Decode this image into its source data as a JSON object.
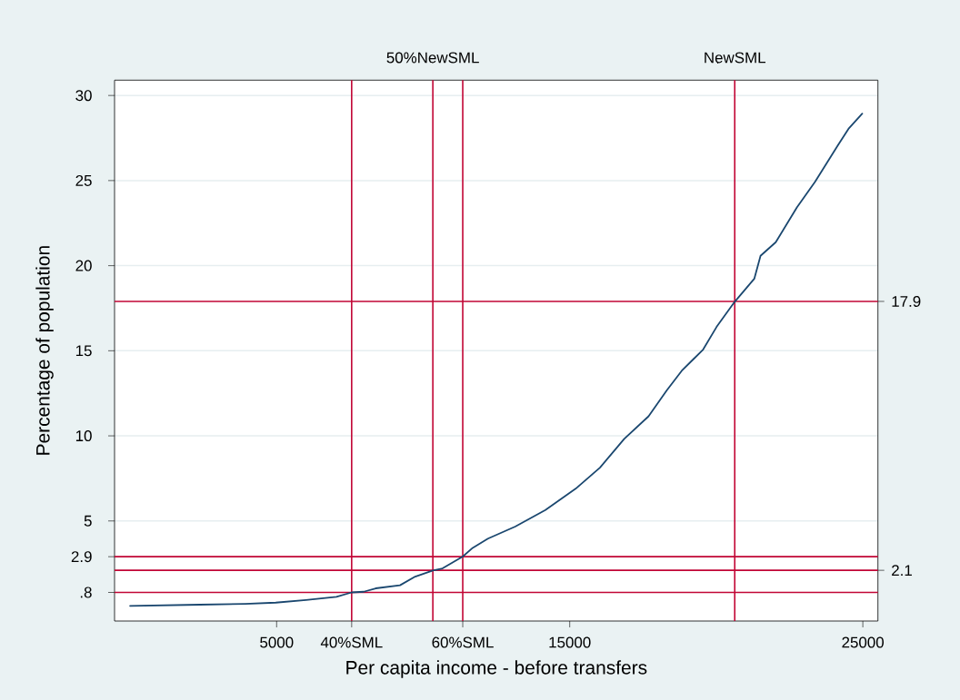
{
  "chart_data": {
    "type": "line",
    "xlabel": "Per capita income - before transfers",
    "ylabel": "Percentage of population",
    "xlim": [
      -530,
      25515
    ],
    "ylim": [
      -0.88,
      30.9
    ],
    "y2lim": [
      -0.88,
      30.9
    ],
    "annotations": [
      "50%NewSML",
      "NewSML"
    ],
    "xticks": [
      5000,
      15000,
      25000
    ],
    "yticks": [
      5,
      10,
      15,
      20,
      25,
      30
    ],
    "grid": "y",
    "line_style": "solid",
    "ref_lines": [
      {
        "axis": "x",
        "value": 7560,
        "label": "40%SML",
        "color": "#c10534"
      },
      {
        "axis": "x",
        "value": 10330,
        "color": "#c10534"
      },
      {
        "axis": "x",
        "value": 11350,
        "label": "60%SML",
        "color": "#c10534"
      },
      {
        "axis": "x",
        "value": 20630,
        "color": "#c10534"
      },
      {
        "axis": "y",
        "value": 0.8,
        "label": ".8",
        "color": "#c10534"
      },
      {
        "axis": "y2",
        "value": 2.1,
        "label": "2.1",
        "color": "#c10534"
      },
      {
        "axis": "y",
        "value": 2.9,
        "label": "2.9",
        "color": "#c10534"
      },
      {
        "axis": "y2",
        "value": 17.9,
        "label": "17.9",
        "color": "#c10534"
      }
    ],
    "series": [
      {
        "color": "#1a476f",
        "x": [
          0,
          2380,
          3930,
          4970,
          6000,
          7040,
          7560,
          7970,
          8380,
          9210,
          9730,
          10330,
          10660,
          11350,
          11690,
          12210,
          13140,
          14170,
          15200,
          16030,
          16860,
          17690,
          18310,
          18820,
          19550,
          20010,
          20630,
          21300,
          21510,
          22030,
          22750,
          23370,
          24150,
          24510,
          24980
        ],
        "values": [
          0.01,
          0.08,
          0.13,
          0.2,
          0.35,
          0.54,
          0.8,
          0.84,
          1.04,
          1.22,
          1.73,
          2.09,
          2.21,
          2.91,
          3.42,
          3.96,
          4.67,
          5.64,
          6.89,
          8.13,
          9.82,
          11.15,
          12.67,
          13.82,
          15.07,
          16.4,
          17.88,
          19.24,
          20.58,
          21.38,
          23.42,
          24.93,
          27.07,
          28.04,
          28.93
        ]
      }
    ]
  }
}
